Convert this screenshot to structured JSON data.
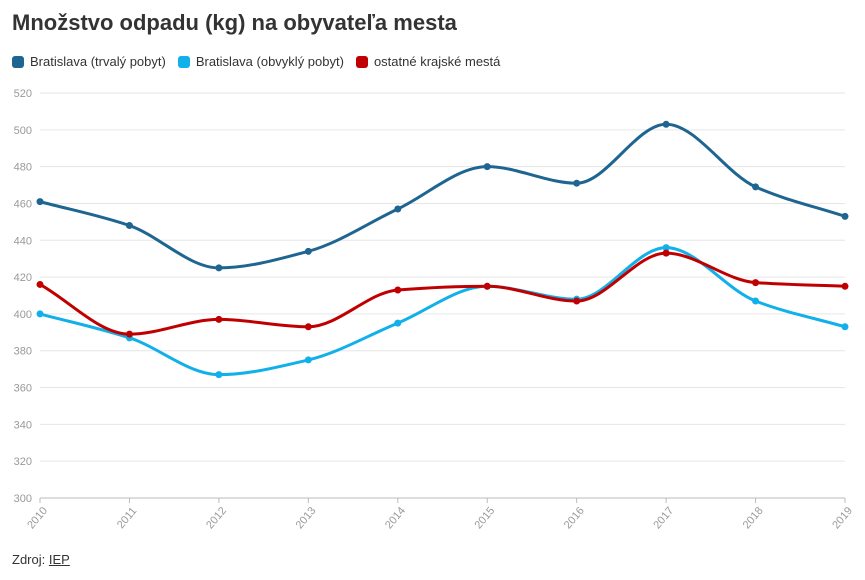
{
  "title": "Množstvo odpadu (kg) na obyvateľa mesta",
  "source": {
    "label": "Zdroj:",
    "link_text": "IEP"
  },
  "chart_data": {
    "type": "line",
    "title": "Množstvo odpadu (kg) na obyvateľa mesta",
    "x": [
      "2010",
      "2011",
      "2012",
      "2013",
      "2014",
      "2015",
      "2016",
      "2017",
      "2018",
      "2019"
    ],
    "ylim": [
      300,
      520
    ],
    "yticks": [
      300,
      320,
      340,
      360,
      380,
      400,
      420,
      440,
      460,
      480,
      500,
      520
    ],
    "grid": true,
    "legend_position": "top-left",
    "series": [
      {
        "name": "Bratislava (trvalý pobyt)",
        "color": "#1f6591",
        "values": [
          461,
          448,
          425,
          434,
          457,
          480,
          471,
          503,
          469,
          453
        ]
      },
      {
        "name": "Bratislava (obvyklý pobyt)",
        "color": "#12b0ea",
        "values": [
          400,
          387,
          367,
          375,
          395,
          415,
          408,
          436,
          407,
          393
        ]
      },
      {
        "name": "ostatné krajské mestá",
        "color": "#c00000",
        "values": [
          416,
          389,
          397,
          393,
          413,
          415,
          407,
          433,
          417,
          415
        ]
      }
    ]
  }
}
